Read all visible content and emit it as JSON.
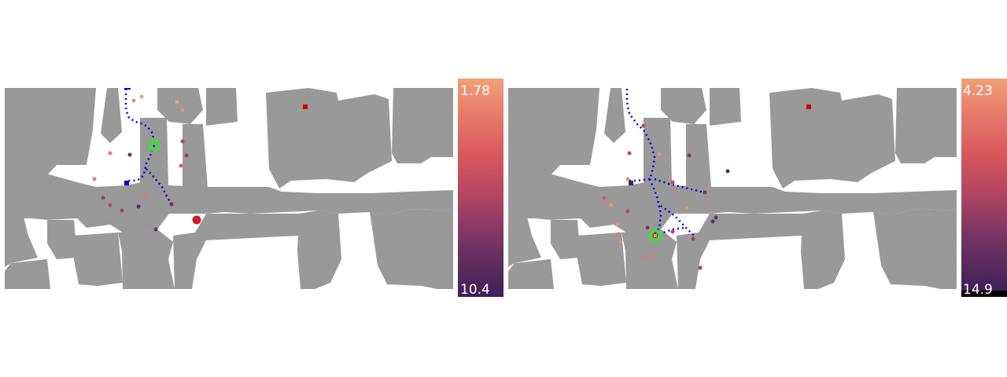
{
  "panels": [
    {
      "colorbar": {
        "top_label": "1.78",
        "bottom_label": "10.4"
      },
      "legend": {
        "path_color": "#0000d0",
        "goal_color": "#30e830",
        "obstacle_color": "#999999"
      }
    },
    {
      "colorbar": {
        "top_label": "4.23",
        "bottom_label": "14.9"
      },
      "legend": {
        "path_color": "#0000d0",
        "goal_color": "#30e830",
        "obstacle_color": "#999999"
      }
    }
  ],
  "colormap": [
    "#f0a078",
    "#e67a6a",
    "#d9585e",
    "#c24460",
    "#a0405e",
    "#7a3560",
    "#5a2b64",
    "#45235e"
  ]
}
